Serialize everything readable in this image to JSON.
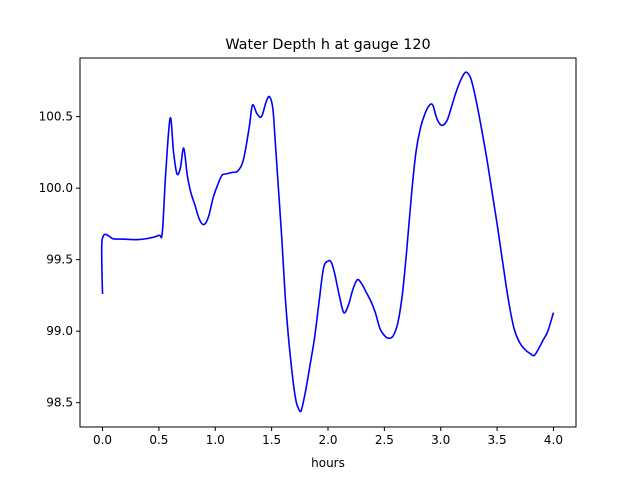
{
  "chart_data": {
    "type": "line",
    "title": "Water Depth h at gauge 120",
    "xlabel": "hours",
    "ylabel": "",
    "xlim": [
      -0.2,
      4.2
    ],
    "ylim": [
      98.33,
      100.91
    ],
    "xticks": [
      0.0,
      0.5,
      1.0,
      1.5,
      2.0,
      2.5,
      3.0,
      3.5,
      4.0
    ],
    "xtick_labels": [
      "0.0",
      "0.5",
      "1.0",
      "1.5",
      "2.0",
      "2.5",
      "3.0",
      "3.5",
      "4.0"
    ],
    "yticks": [
      98.5,
      99.0,
      99.5,
      100.0,
      100.5
    ],
    "ytick_labels": [
      "98.5",
      "99.0",
      "99.5",
      "100.0",
      "100.5"
    ],
    "grid": false,
    "series": [
      {
        "color": "#0000ff",
        "x": [
          0.0,
          0.0,
          0.1,
          0.2,
          0.3,
          0.4,
          0.5,
          0.53,
          0.56,
          0.6,
          0.63,
          0.66,
          0.69,
          0.72,
          0.75,
          0.78,
          0.82,
          0.86,
          0.9,
          0.94,
          0.98,
          1.02,
          1.06,
          1.1,
          1.15,
          1.2,
          1.25,
          1.3,
          1.33,
          1.37,
          1.41,
          1.45,
          1.48,
          1.51,
          1.53,
          1.56,
          1.59,
          1.62,
          1.65,
          1.68,
          1.7,
          1.72,
          1.74,
          1.76,
          1.78,
          1.81,
          1.84,
          1.88,
          1.92,
          1.96,
          2.0,
          2.03,
          2.06,
          2.1,
          2.14,
          2.18,
          2.22,
          2.26,
          2.3,
          2.34,
          2.38,
          2.42,
          2.46,
          2.5,
          2.54,
          2.58,
          2.62,
          2.66,
          2.7,
          2.74,
          2.78,
          2.82,
          2.86,
          2.9,
          2.93,
          2.96,
          2.99,
          3.02,
          3.06,
          3.1,
          3.14,
          3.18,
          3.22,
          3.26,
          3.29,
          3.33,
          3.37,
          3.41,
          3.45,
          3.5,
          3.55,
          3.6,
          3.65,
          3.7,
          3.75,
          3.8,
          3.83,
          3.87,
          3.91,
          3.95,
          4.0
        ],
        "y": [
          99.26,
          99.65,
          99.645,
          99.643,
          99.64,
          99.648,
          99.67,
          99.69,
          100.1,
          100.49,
          100.25,
          100.1,
          100.14,
          100.28,
          100.1,
          99.98,
          99.88,
          99.78,
          99.745,
          99.8,
          99.93,
          100.02,
          100.09,
          100.1,
          100.11,
          100.12,
          100.2,
          100.42,
          100.58,
          100.52,
          100.5,
          100.6,
          100.64,
          100.56,
          100.35,
          100.0,
          99.65,
          99.25,
          98.95,
          98.72,
          98.59,
          98.5,
          98.455,
          98.44,
          98.5,
          98.62,
          98.76,
          98.95,
          99.2,
          99.44,
          99.49,
          99.48,
          99.4,
          99.25,
          99.13,
          99.18,
          99.29,
          99.36,
          99.33,
          99.27,
          99.21,
          99.13,
          99.02,
          98.97,
          98.95,
          98.97,
          99.06,
          99.26,
          99.58,
          99.95,
          100.25,
          100.42,
          100.52,
          100.58,
          100.58,
          100.5,
          100.45,
          100.44,
          100.48,
          100.58,
          100.68,
          100.76,
          100.81,
          100.78,
          100.7,
          100.55,
          100.38,
          100.2,
          100.0,
          99.75,
          99.48,
          99.22,
          99.02,
          98.92,
          98.87,
          98.84,
          98.83,
          98.88,
          98.94,
          99.0,
          99.13
        ]
      }
    ]
  }
}
